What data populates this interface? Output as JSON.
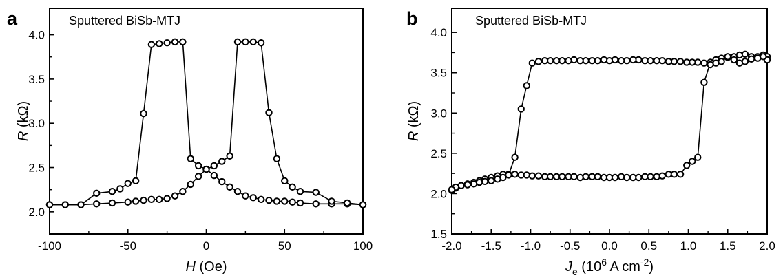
{
  "chart_data": [
    {
      "type": "line",
      "panel_label": "a",
      "annotation": "Sputtered BiSb-MTJ",
      "xlabel": {
        "var": "H",
        "unit": " (Oe)"
      },
      "ylabel": {
        "var": "R",
        "unit": " (kΩ)"
      },
      "xlim": [
        -100,
        100
      ],
      "ylim": [
        1.75,
        4.3
      ],
      "xticks": [
        -100,
        -50,
        0,
        50,
        100
      ],
      "yticks": [
        2.0,
        2.5,
        3.0,
        3.5,
        4.0
      ],
      "xtick_labels": [
        "-100",
        "-50",
        "0",
        "50",
        "100"
      ],
      "ytick_labels": [
        "2.0",
        "2.5",
        "3.0",
        "3.5",
        "4.0"
      ],
      "grid": false,
      "series": [
        {
          "x": [
            -100,
            -90,
            -80,
            -70,
            -60,
            -50,
            -45,
            -40,
            -35,
            -30,
            -25,
            -20,
            -15,
            -10,
            -5,
            0,
            5,
            10,
            15,
            20,
            25,
            30,
            35,
            40,
            45,
            50,
            55,
            60,
            70,
            80,
            90,
            100
          ],
          "y": [
            2.08,
            2.08,
            2.08,
            2.09,
            2.1,
            2.11,
            2.12,
            2.13,
            2.14,
            2.14,
            2.15,
            2.18,
            2.23,
            2.31,
            2.4,
            2.48,
            2.41,
            2.34,
            2.28,
            2.23,
            2.18,
            2.16,
            2.14,
            2.13,
            2.12,
            2.12,
            2.11,
            2.1,
            2.09,
            2.09,
            2.09,
            2.08
          ]
        },
        {
          "x": [
            100,
            90,
            80,
            70,
            60,
            55,
            50,
            45,
            40,
            35,
            30,
            25,
            20,
            15,
            10,
            5,
            0,
            -5,
            -10,
            -15,
            -20,
            -25,
            -30,
            -35,
            -40,
            -45,
            -50,
            -55,
            -60,
            -70,
            -80,
            -90,
            -100
          ],
          "y": [
            2.08,
            2.1,
            2.12,
            2.22,
            2.23,
            2.28,
            2.35,
            2.6,
            3.12,
            3.91,
            3.92,
            3.92,
            3.92,
            2.63,
            2.57,
            2.52,
            2.48,
            2.52,
            2.6,
            3.92,
            3.92,
            3.91,
            3.9,
            3.89,
            3.11,
            2.35,
            2.32,
            2.26,
            2.23,
            2.21,
            2.08,
            2.08,
            2.08
          ]
        }
      ]
    },
    {
      "type": "line",
      "panel_label": "b",
      "annotation": "Sputtered BiSb-MTJ",
      "xlabel": {
        "var": "J",
        "sub": "e",
        "pre_sup": " (10",
        "sup1": "6",
        "mid": " A cm",
        "sup2": "-2",
        "post": ")"
      },
      "ylabel": {
        "var": "R",
        "unit": " (kΩ)"
      },
      "xlim": [
        -2.0,
        2.0
      ],
      "ylim": [
        1.5,
        4.3
      ],
      "xticks": [
        -2.0,
        -1.5,
        -1.0,
        -0.5,
        0.0,
        0.5,
        1.0,
        1.5,
        2.0
      ],
      "yticks": [
        1.5,
        2.0,
        2.5,
        3.0,
        3.5,
        4.0
      ],
      "xtick_labels": [
        "-2.0",
        "-1.5",
        "-1.0",
        "-0.5",
        "0.0",
        "0.5",
        "1.0",
        "1.5",
        "2.0"
      ],
      "ytick_labels": [
        "1.5",
        "2.0",
        "2.5",
        "3.0",
        "3.5",
        "4.0"
      ],
      "grid": false,
      "series": [
        {
          "x": [
            -2.0,
            -1.95,
            -1.88,
            -1.8,
            -1.72,
            -1.65,
            -1.58,
            -1.5,
            -1.42,
            -1.35,
            -1.28,
            -1.2,
            -1.12,
            -1.05,
            -0.98,
            -0.9,
            -0.82,
            -0.75,
            -0.67,
            -0.6,
            -0.52,
            -0.45,
            -0.37,
            -0.3,
            -0.22,
            -0.15,
            -0.07,
            0.0,
            0.07,
            0.15,
            0.22,
            0.3,
            0.37,
            0.45,
            0.52,
            0.6,
            0.67,
            0.75,
            0.82,
            0.9,
            0.98,
            1.05,
            1.12,
            1.2,
            1.28,
            1.35,
            1.42,
            1.5,
            1.58,
            1.65,
            1.72,
            1.8,
            1.88,
            1.95,
            2.0
          ],
          "y": [
            2.04,
            2.07,
            2.1,
            2.12,
            2.14,
            2.16,
            2.18,
            2.2,
            2.22,
            2.24,
            2.24,
            2.24,
            2.23,
            2.23,
            2.22,
            2.22,
            2.21,
            2.21,
            2.21,
            2.21,
            2.21,
            2.21,
            2.2,
            2.21,
            2.21,
            2.21,
            2.2,
            2.2,
            2.2,
            2.21,
            2.2,
            2.2,
            2.2,
            2.21,
            2.21,
            2.21,
            2.22,
            2.24,
            2.24,
            2.24,
            2.35,
            2.4,
            2.45,
            3.38,
            3.63,
            3.66,
            3.68,
            3.69,
            3.7,
            3.72,
            3.73,
            3.7,
            3.7,
            3.72,
            3.7
          ]
        },
        {
          "x": [
            2.0,
            1.95,
            1.88,
            1.8,
            1.72,
            1.65,
            1.58,
            1.5,
            1.42,
            1.35,
            1.28,
            1.2,
            1.12,
            1.05,
            0.98,
            0.9,
            0.82,
            0.75,
            0.67,
            0.6,
            0.52,
            0.45,
            0.37,
            0.3,
            0.22,
            0.15,
            0.07,
            0.0,
            -0.07,
            -0.15,
            -0.22,
            -0.3,
            -0.37,
            -0.45,
            -0.52,
            -0.6,
            -0.67,
            -0.75,
            -0.82,
            -0.9,
            -0.98,
            -1.05,
            -1.12,
            -1.2,
            -1.28,
            -1.35,
            -1.42,
            -1.5,
            -1.58,
            -1.65,
            -1.72,
            -1.8,
            -1.88,
            -1.95,
            -2.0
          ],
          "y": [
            3.66,
            3.7,
            3.68,
            3.67,
            3.64,
            3.62,
            3.66,
            3.7,
            3.64,
            3.62,
            3.6,
            3.62,
            3.63,
            3.63,
            3.63,
            3.64,
            3.64,
            3.64,
            3.65,
            3.65,
            3.65,
            3.65,
            3.66,
            3.66,
            3.65,
            3.65,
            3.66,
            3.65,
            3.66,
            3.65,
            3.65,
            3.65,
            3.65,
            3.66,
            3.65,
            3.65,
            3.65,
            3.65,
            3.65,
            3.64,
            3.62,
            3.34,
            3.05,
            2.45,
            2.23,
            2.2,
            2.18,
            2.16,
            2.15,
            2.14,
            2.12,
            2.11,
            2.1,
            2.08,
            2.05
          ]
        }
      ]
    }
  ]
}
